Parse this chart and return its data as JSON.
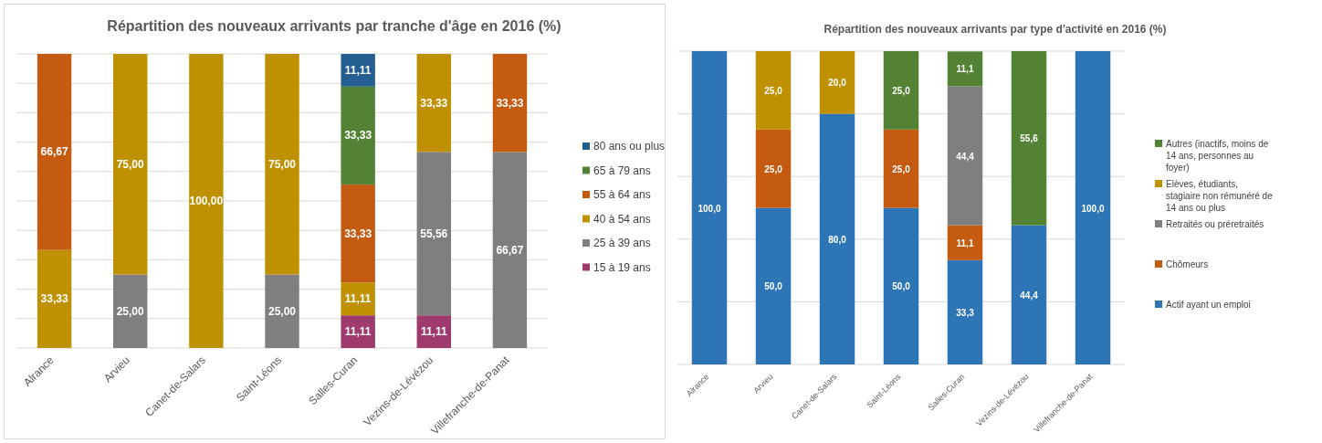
{
  "chart_data": [
    {
      "type": "bar",
      "stacked": true,
      "title": "Répartition des nouveaux arrivants par tranche d'âge en 2016 (%)",
      "categories": [
        "Alrance",
        "Arvieu",
        "Canet-de-Salars",
        "Saint-Léons",
        "Salles-Curan",
        "Vezins-de-Lévézou",
        "Villefranche-de-Panat"
      ],
      "ylim": [
        0,
        100
      ],
      "yticks": [
        {
          "value": 0,
          "label": null
        },
        {
          "value": 10,
          "label": null
        },
        {
          "value": 20,
          "label": null
        },
        {
          "value": 30,
          "label": null
        },
        {
          "value": 40,
          "label": null
        },
        {
          "value": 50,
          "label": null
        },
        {
          "value": 60,
          "label": null
        },
        {
          "value": 70,
          "label": null
        },
        {
          "value": 80,
          "label": null
        },
        {
          "value": 90,
          "label": null
        },
        {
          "value": 100,
          "label": null
        }
      ],
      "grid": "y",
      "tick_labels": "x",
      "legend": "right",
      "series": [
        {
          "name": "15 à 19 ans",
          "color": "#9e3a6e",
          "values": [
            null,
            null,
            null,
            null,
            11.11,
            11.11,
            null
          ],
          "value_labels": [
            null,
            null,
            null,
            null,
            "11,11",
            "11,11",
            null
          ]
        },
        {
          "name": "25 à 39 ans",
          "color": "#7f7f7f",
          "values": [
            null,
            25,
            null,
            25,
            null,
            55.56,
            66.67
          ],
          "value_labels": [
            null,
            "25,00",
            null,
            "25,00",
            null,
            "55,56",
            "66,67"
          ]
        },
        {
          "name": "40 à 54 ans",
          "color": "#bf9000",
          "values": [
            33.33,
            75,
            100,
            75,
            11.11,
            33.33,
            null
          ],
          "value_labels": [
            "33,33",
            "75,00",
            "100,00",
            "75,00",
            "11,11",
            "33,33",
            null
          ]
        },
        {
          "name": "55 à 64 ans",
          "color": "#c55a11",
          "values": [
            66.67,
            null,
            null,
            null,
            33.33,
            null,
            33.33
          ],
          "value_labels": [
            "66,67",
            null,
            null,
            null,
            "33,33",
            null,
            "33,33"
          ]
        },
        {
          "name": "65 à 79 ans",
          "color": "#548235",
          "values": [
            null,
            null,
            null,
            null,
            33.33,
            null,
            null
          ],
          "value_labels": [
            null,
            null,
            null,
            null,
            "33,33",
            null,
            null
          ]
        },
        {
          "name": "80 ans ou plus",
          "color": "#255e91",
          "values": [
            null,
            null,
            null,
            null,
            11.11,
            null,
            null
          ],
          "value_labels": [
            null,
            null,
            null,
            null,
            "11,11",
            null,
            null
          ]
        }
      ]
    },
    {
      "type": "bar",
      "stacked": true,
      "title": "Répartition des nouveaux arrivants par type d'activité en 2016 (%)",
      "categories": [
        "Alrance",
        "Arvieu",
        "Canet-de-Salars",
        "Saint-Léons",
        "Salles-Curan",
        "Vezins-de-Lévézou",
        "Villefranche-de-Panat"
      ],
      "ylim": [
        0,
        100
      ],
      "yticks": [
        {
          "value": 0,
          "label": null
        },
        {
          "value": 20,
          "label": null
        },
        {
          "value": 40,
          "label": null
        },
        {
          "value": 60,
          "label": null
        },
        {
          "value": 80,
          "label": null
        },
        {
          "value": 100,
          "label": null
        }
      ],
      "grid": "y",
      "tick_labels": "x",
      "legend": "right",
      "series": [
        {
          "name": "Actif ayant un emploi",
          "color": "#2e75b6",
          "values": [
            100,
            50,
            80,
            50,
            33.3,
            44.4,
            100
          ],
          "value_labels": [
            "100,0",
            "50,0",
            "80,0",
            "50,0",
            "33,3",
            "44,4",
            "100,0"
          ]
        },
        {
          "name": "Chômeurs",
          "color": "#c55a11",
          "values": [
            null,
            25,
            null,
            25,
            11.1,
            null,
            null
          ],
          "value_labels": [
            null,
            "25,0",
            null,
            "25,0",
            "11,1",
            null,
            null
          ]
        },
        {
          "name": "Retraités ou préretraités",
          "color": "#7f7f7f",
          "values": [
            null,
            null,
            null,
            null,
            44.4,
            null,
            null
          ],
          "value_labels": [
            null,
            null,
            null,
            null,
            "44,4",
            null,
            null
          ]
        },
        {
          "name": "Elèves, étudiants, stagiaire non rémunéré de 14 ans ou plus",
          "color": "#bf9000",
          "values": [
            null,
            25,
            20,
            null,
            null,
            null,
            null
          ],
          "value_labels": [
            null,
            "25,0",
            "20,0",
            null,
            null,
            null,
            null
          ]
        },
        {
          "name": "Autres (inactifs, moins de 14 ans, personnes au foyer)",
          "color": "#548235",
          "values": [
            null,
            null,
            null,
            25,
            11.1,
            55.6,
            null
          ],
          "value_labels": [
            null,
            null,
            null,
            "25,0",
            "11,1",
            "55,6",
            null
          ]
        }
      ]
    }
  ]
}
